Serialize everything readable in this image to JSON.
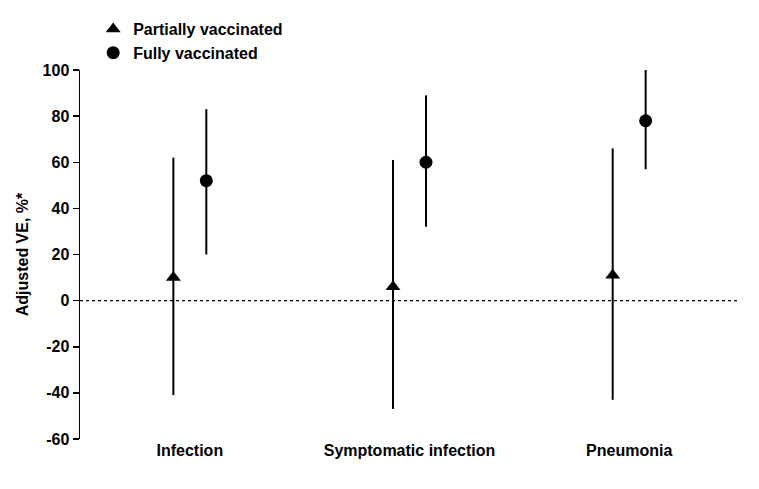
{
  "chart_data": {
    "type": "scatter",
    "y_label": "Adjusted VE, %*",
    "categories": [
      "Infection",
      "Symptomatic infection",
      "Pneumonia"
    ],
    "series": [
      {
        "name": "Partially vaccinated",
        "color": "#000000",
        "marker": "triangle",
        "values": [
          10,
          6,
          11
        ],
        "lower": [
          -41,
          -47,
          -43
        ],
        "upper": [
          62,
          61,
          66
        ]
      },
      {
        "name": "Fully vaccinated",
        "color": "#000000",
        "marker": "circle",
        "values": [
          52,
          60,
          78
        ],
        "lower": [
          20,
          32,
          57
        ],
        "upper": [
          83,
          89,
          100
        ]
      }
    ],
    "ylim": [
      -60,
      100
    ],
    "yticks": [
      -60,
      -40,
      -20,
      0,
      20,
      40,
      60,
      80,
      100
    ],
    "reference_line": 0,
    "grid": false,
    "legend": "upper left"
  }
}
